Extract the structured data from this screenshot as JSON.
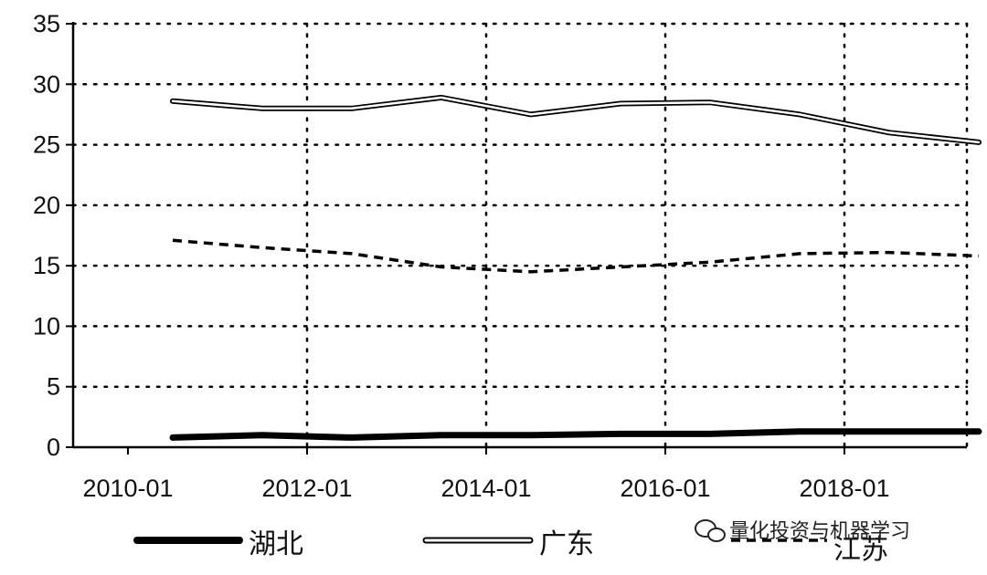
{
  "chart_data": {
    "type": "line",
    "x": [
      "2010-07",
      "2011-07",
      "2012-07",
      "2013-07",
      "2014-07",
      "2015-07",
      "2016-07",
      "2017-07",
      "2018-07",
      "2019-07"
    ],
    "x_ticks": [
      "2010-01",
      "2012-01",
      "2014-01",
      "2016-01",
      "2018-01"
    ],
    "y_ticks": [
      "0",
      "5",
      "10",
      "15",
      "20",
      "25",
      "30",
      "35"
    ],
    "ylim": [
      0,
      35
    ],
    "grid": true,
    "legend_position": "bottom",
    "series": [
      {
        "name": "湖北",
        "style": "thick-solid",
        "color": "#000000",
        "values": [
          0.8,
          1.0,
          0.8,
          1.0,
          1.0,
          1.1,
          1.1,
          1.3,
          1.3,
          1.3
        ]
      },
      {
        "name": "广东",
        "style": "double-line",
        "color": "#000000",
        "values": [
          28.6,
          28.0,
          28.0,
          28.9,
          27.5,
          28.4,
          28.5,
          27.5,
          26.0,
          25.2
        ]
      },
      {
        "name": "江苏",
        "style": "dashed",
        "color": "#000000",
        "values": [
          17.1,
          16.5,
          16.0,
          14.9,
          14.5,
          14.9,
          15.3,
          16.0,
          16.1,
          15.8
        ]
      }
    ]
  },
  "watermark": {
    "text": "量化投资与机器学习",
    "icon": "wechat-icon"
  }
}
